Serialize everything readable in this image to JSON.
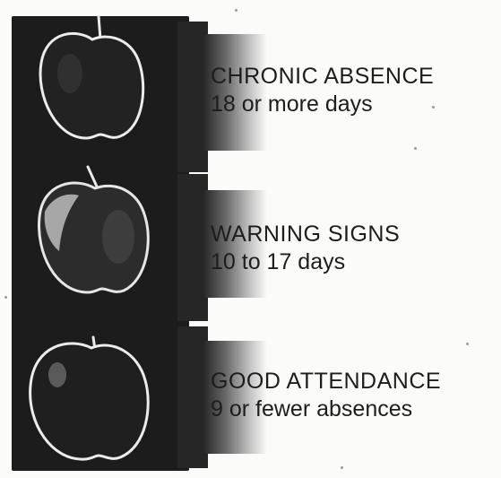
{
  "levels": [
    {
      "title": "CHRONIC ABSENCE",
      "range": "18 or more days"
    },
    {
      "title": "WARNING SIGNS",
      "range": "10 to 17 days"
    },
    {
      "title": "GOOD ATTENDANCE",
      "range": "9 or fewer absences"
    }
  ],
  "colors": {
    "background": "#fbfbf9",
    "light_body": "#1c1c1c",
    "apple_outline": "#e9e9e9",
    "text": "#1d1d1d"
  },
  "icons": [
    "apple-icon",
    "apple-icon",
    "apple-icon"
  ]
}
